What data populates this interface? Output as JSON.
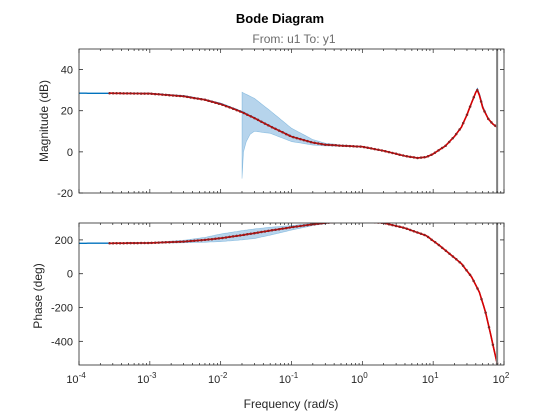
{
  "chart_data": {
    "type": "line",
    "title": "Bode Diagram",
    "subtitle": "From: u1  To: y1",
    "xlabel": "Frequency (rad/s)",
    "xscale": "log",
    "xlim": [
      0.0001,
      100
    ],
    "x_ticks": [
      {
        "value": 0.0001,
        "base": "10",
        "exp": "-4"
      },
      {
        "value": 0.001,
        "base": "10",
        "exp": "-3"
      },
      {
        "value": 0.01,
        "base": "10",
        "exp": "-2"
      },
      {
        "value": 0.1,
        "base": "10",
        "exp": "-1"
      },
      {
        "value": 1,
        "base": "10",
        "exp": "0"
      },
      {
        "value": 10,
        "base": "10",
        "exp": "1"
      },
      {
        "value": 100,
        "base": "10",
        "exp": "2"
      }
    ],
    "grid": false,
    "colors": {
      "model": "#0072bd",
      "band": "#9dc6e6",
      "data": "#d90000",
      "marker": "#8a2020",
      "limit": "#7f7f7f"
    },
    "nyquist_frequency": 80,
    "panels": [
      {
        "id": "magnitude",
        "ylabel": "Magnitude (dB)",
        "ylim": [
          -20,
          50
        ],
        "yticks": [
          -20,
          0,
          20,
          40
        ],
        "model": [
          [
            0.0001,
            28.5
          ],
          [
            0.001,
            28.4
          ],
          [
            0.003,
            27.2
          ],
          [
            0.006,
            25.4
          ],
          [
            0.01,
            23.5
          ],
          [
            0.015,
            21.2
          ],
          [
            0.02,
            19.5
          ],
          [
            0.03,
            16.5
          ],
          [
            0.05,
            12.5
          ],
          [
            0.1,
            7.5
          ],
          [
            0.2,
            4.5
          ],
          [
            0.3,
            3.5
          ],
          [
            0.5,
            3.0
          ],
          [
            1,
            2.5
          ],
          [
            2,
            0.5
          ],
          [
            4,
            -2.0
          ],
          [
            6,
            -3.0
          ],
          [
            8,
            -2.5
          ],
          [
            10,
            -1.0
          ],
          [
            15,
            3.0
          ],
          [
            20,
            7.5
          ],
          [
            25,
            12.0
          ],
          [
            30,
            18.0
          ],
          [
            35,
            24.0
          ],
          [
            40,
            29.0
          ],
          [
            42,
            30.5
          ],
          [
            45,
            28.0
          ],
          [
            50,
            22.0
          ],
          [
            60,
            16.0
          ],
          [
            70,
            13.5
          ],
          [
            80,
            12.0
          ]
        ],
        "band_upper": [
          [
            0.02,
            29.0
          ],
          [
            0.03,
            26.0
          ],
          [
            0.05,
            20.0
          ],
          [
            0.1,
            11.5
          ],
          [
            0.2,
            6.0
          ],
          [
            0.3,
            4.2
          ],
          [
            0.5,
            3.4
          ],
          [
            1,
            2.7
          ]
        ],
        "band_lower": [
          [
            0.02,
            -13.0
          ],
          [
            0.021,
            0.0
          ],
          [
            0.023,
            5.0
          ],
          [
            0.026,
            8.5
          ],
          [
            0.03,
            10.0
          ],
          [
            0.05,
            9.0
          ],
          [
            0.1,
            5.0
          ],
          [
            0.2,
            3.3
          ],
          [
            0.3,
            2.9
          ],
          [
            0.5,
            2.7
          ],
          [
            1,
            2.3
          ]
        ],
        "data": [
          [
            0.00027,
            28.5
          ],
          [
            0.001,
            28.3
          ],
          [
            0.003,
            27.0
          ],
          [
            0.006,
            25.3
          ],
          [
            0.01,
            23.2
          ],
          [
            0.015,
            21.0
          ],
          [
            0.02,
            19.3
          ],
          [
            0.03,
            16.4
          ],
          [
            0.05,
            12.4
          ],
          [
            0.1,
            7.4
          ],
          [
            0.2,
            4.5
          ],
          [
            0.3,
            3.5
          ],
          [
            0.5,
            3.0
          ],
          [
            1,
            2.5
          ],
          [
            2,
            0.5
          ],
          [
            4,
            -2.0
          ],
          [
            6,
            -3.0
          ],
          [
            8,
            -2.5
          ],
          [
            10,
            -1.0
          ],
          [
            15,
            3.0
          ],
          [
            20,
            7.5
          ],
          [
            25,
            12.0
          ],
          [
            30,
            18.0
          ],
          [
            35,
            24.0
          ],
          [
            40,
            29.0
          ],
          [
            42,
            30.0
          ],
          [
            45,
            27.5
          ],
          [
            50,
            21.5
          ],
          [
            60,
            16.0
          ],
          [
            70,
            13.5
          ],
          [
            80,
            12.0
          ]
        ]
      },
      {
        "id": "phase",
        "ylabel": "Phase (deg)",
        "ylim": [
          -540,
          300
        ],
        "yticks": [
          -400,
          -200,
          0,
          200
        ],
        "model": [
          [
            0.0001,
            180
          ],
          [
            0.001,
            182
          ],
          [
            0.003,
            190
          ],
          [
            0.006,
            200
          ],
          [
            0.01,
            210
          ],
          [
            0.02,
            228
          ],
          [
            0.05,
            255
          ],
          [
            0.1,
            275
          ],
          [
            0.2,
            292
          ],
          [
            0.5,
            310
          ],
          [
            1,
            312
          ],
          [
            2,
            300
          ],
          [
            4,
            270
          ],
          [
            8,
            225
          ],
          [
            12,
            170
          ],
          [
            18,
            110
          ],
          [
            25,
            60
          ],
          [
            35,
            -20
          ],
          [
            45,
            -110
          ],
          [
            55,
            -230
          ],
          [
            65,
            -360
          ],
          [
            75,
            -480
          ],
          [
            80,
            -530
          ]
        ],
        "band_upper": [
          [
            0.001,
            184
          ],
          [
            0.003,
            198
          ],
          [
            0.006,
            215
          ],
          [
            0.01,
            235
          ],
          [
            0.02,
            255
          ],
          [
            0.03,
            265
          ],
          [
            0.05,
            275
          ],
          [
            0.1,
            285
          ],
          [
            0.2,
            298
          ],
          [
            0.5,
            312
          ],
          [
            1,
            314
          ]
        ],
        "band_lower": [
          [
            0.001,
            180
          ],
          [
            0.003,
            183
          ],
          [
            0.006,
            186
          ],
          [
            0.01,
            190
          ],
          [
            0.02,
            200
          ],
          [
            0.03,
            208
          ],
          [
            0.05,
            228
          ],
          [
            0.1,
            258
          ],
          [
            0.2,
            285
          ],
          [
            0.5,
            308
          ],
          [
            1,
            310
          ]
        ],
        "data": [
          [
            0.00027,
            180
          ],
          [
            0.001,
            182
          ],
          [
            0.003,
            190
          ],
          [
            0.006,
            200
          ],
          [
            0.01,
            210
          ],
          [
            0.02,
            228
          ],
          [
            0.05,
            255
          ],
          [
            0.1,
            275
          ],
          [
            0.2,
            292
          ],
          [
            0.5,
            310
          ],
          [
            1,
            312
          ],
          [
            2,
            300
          ],
          [
            4,
            270
          ],
          [
            8,
            225
          ],
          [
            12,
            170
          ],
          [
            18,
            110
          ],
          [
            25,
            60
          ],
          [
            35,
            -20
          ],
          [
            45,
            -110
          ],
          [
            55,
            -230
          ],
          [
            65,
            -360
          ],
          [
            75,
            -480
          ],
          [
            80,
            -530
          ]
        ]
      }
    ]
  }
}
